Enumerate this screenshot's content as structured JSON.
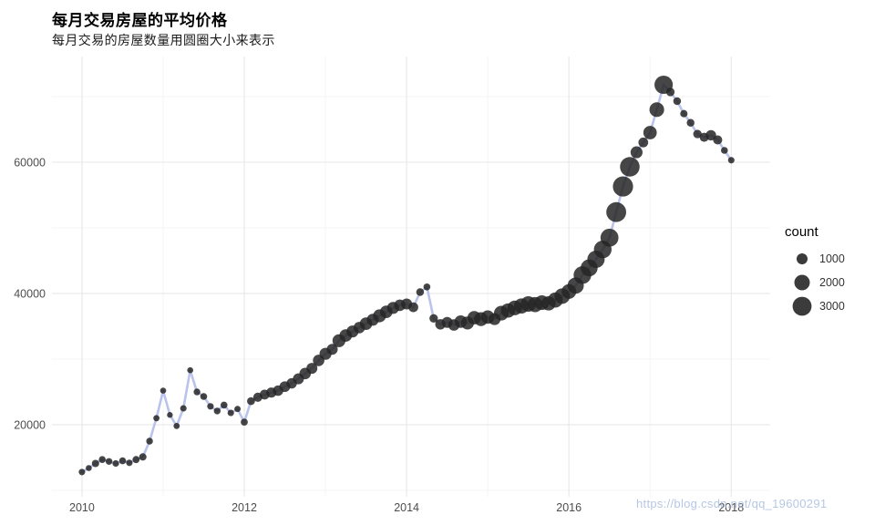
{
  "title": "每月交易房屋的平均价格",
  "subtitle": "每月交易的房屋数量用圆圈大小来表示",
  "watermark": "https://blog.csdn.net/qq_19600291",
  "legend": {
    "title": "count",
    "items": [
      1000,
      2000,
      3000
    ]
  },
  "chart_data": {
    "type": "scatter",
    "title": "每月交易房屋的平均价格",
    "subtitle": "每月交易的房屋数量用圆圈大小来表示",
    "xlabel": "",
    "ylabel": "",
    "x_ticks": [
      2010,
      2012,
      2014,
      2016,
      2018
    ],
    "x_minor": [
      2011,
      2013,
      2015,
      2017
    ],
    "y_ticks": [
      20000,
      40000,
      60000
    ],
    "y_minor": [
      10000,
      30000,
      50000,
      70000
    ],
    "xlim": [
      2009.63,
      2018.48
    ],
    "ylim": [
      9030,
      76100
    ],
    "months_from": "2010-01",
    "months_step": "1 month",
    "prices": [
      12800,
      13400,
      14100,
      14700,
      14400,
      14100,
      14500,
      14200,
      14700,
      15100,
      17500,
      21000,
      25200,
      21500,
      19800,
      22500,
      28300,
      25000,
      24300,
      22800,
      22100,
      23000,
      21800,
      22400,
      20400,
      23600,
      24200,
      24600,
      24900,
      25200,
      25800,
      26300,
      27000,
      27800,
      28600,
      29800,
      30800,
      31500,
      32800,
      33600,
      34200,
      34800,
      35400,
      36000,
      36600,
      37200,
      37800,
      38200,
      38400,
      37900,
      40200,
      41000,
      36200,
      35300,
      35600,
      35200,
      35700,
      35500,
      36300,
      36100,
      36400,
      36100,
      37000,
      37400,
      37800,
      38100,
      38400,
      38300,
      38600,
      38500,
      39000,
      39600,
      40300,
      41200,
      42800,
      43900,
      45200,
      46700,
      48500,
      52400,
      56300,
      59300,
      61500,
      63000,
      64500,
      68000,
      71800,
      70700,
      69300,
      67400,
      66000,
      64300,
      63800,
      64100,
      63400,
      61800,
      60300
    ],
    "counts": [
      350,
      300,
      450,
      400,
      380,
      360,
      400,
      350,
      420,
      450,
      380,
      320,
      300,
      280,
      320,
      350,
      300,
      380,
      400,
      360,
      380,
      400,
      350,
      330,
      420,
      520,
      700,
      800,
      850,
      900,
      950,
      900,
      1000,
      1100,
      1000,
      1100,
      1200,
      1000,
      1400,
      1300,
      1200,
      1100,
      1300,
      1200,
      1400,
      1300,
      1200,
      1100,
      1000,
      800,
      500,
      400,
      600,
      900,
      1000,
      1100,
      1300,
      1400,
      1500,
      1600,
      1500,
      1200,
      1800,
      1700,
      1800,
      1900,
      2000,
      1900,
      1800,
      1700,
      1900,
      2000,
      1800,
      2200,
      2600,
      2400,
      2500,
      2600,
      2700,
      3300,
      3400,
      3200,
      1200,
      800,
      1500,
      1800,
      2800,
      600,
      500,
      450,
      500,
      600,
      700,
      900,
      700,
      400,
      350
    ],
    "colors": {
      "line": "#b9c3ec",
      "point": "#262626",
      "grid_major": "#e9e9e9",
      "grid_minor": "#f5f5f5",
      "axis_text": "#4d4d4d"
    }
  }
}
